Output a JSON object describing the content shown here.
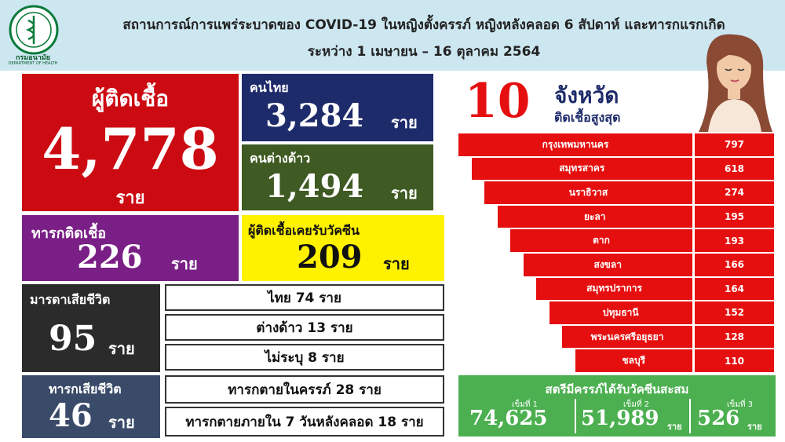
{
  "header": {
    "title_line1": "สถานการณ์การแพร่ระบาดของ COVID-19 ในหญิงตั้งครรภ์ หญิงหลังคลอด 6 สัปดาห์ และทารกแรกเกิด",
    "title_line2": "ระหว่าง 1 เมษายน – 16 ตุลาคม 2564",
    "logo_text": "กรมอนามัย",
    "logo_subtext": "DEPARTMENT OF HEALTH"
  },
  "infected": {
    "label": "ผู้ติดเชื้อ",
    "value": "4,778",
    "unit": "ราย"
  },
  "thai": {
    "label": "คนไทย",
    "value": "3,284",
    "unit": "ราย"
  },
  "foreign": {
    "label": "คนต่างด้าว",
    "value": "1,494",
    "unit": "ราย"
  },
  "infant_infected": {
    "label": "ทารกติดเชื้อ",
    "value": "226",
    "unit": "ราย"
  },
  "vaccinated_infected": {
    "label": "ผู้ติดเชื้อเคยรับวัคซีน",
    "value": "209",
    "unit": "ราย"
  },
  "maternal_death": {
    "label": "มารดาเสียชีวิต",
    "value": "95",
    "unit": "ราย",
    "breakdown": [
      "ไทย 74 ราย",
      "ต่างด้าว 13 ราย",
      "ไม่ระบุ 8 ราย"
    ]
  },
  "infant_death": {
    "label": "ทารกเสียชีวิต",
    "value": "46",
    "unit": "ราย",
    "breakdown": [
      "ทารกตายในครรภ์ 28 ราย",
      "ทารกตายภายใน 7 วันหลังคลอด 18 ราย"
    ]
  },
  "top_provinces": {
    "count": "10",
    "title": "จังหวัด",
    "subtitle": "ติดเชื้อสูงสุด",
    "items": [
      {
        "name": "กรุงเทพมหานคร",
        "value": 797
      },
      {
        "name": "สมุทรสาคร",
        "value": 618
      },
      {
        "name": "นราธิวาส",
        "value": 274
      },
      {
        "name": "ยะลา",
        "value": 195
      },
      {
        "name": "ตาก",
        "value": 193
      },
      {
        "name": "สงขลา",
        "value": 166
      },
      {
        "name": "สมุทรปราการ",
        "value": 164
      },
      {
        "name": "ปทุมธานี",
        "value": 152
      },
      {
        "name": "พระนครศรีอยุธยา",
        "value": 128
      },
      {
        "name": "ชลบุรี",
        "value": 110
      }
    ]
  },
  "vaccine": {
    "title": "สตรีมีครรภ์ได้รับวัคซีนสะสม",
    "doses": [
      {
        "label": "เข็มที่ 1",
        "value": "74,625",
        "unit": ""
      },
      {
        "label": "เข็มที่ 2",
        "value": "51,989",
        "unit": "ราย"
      },
      {
        "label": "เข็มที่ 3",
        "value": "526",
        "unit": "ราย"
      }
    ]
  },
  "colors": {
    "red": "#cc0a12",
    "navy": "#1e2b6b",
    "olive": "#3f5a22",
    "purple": "#7a1f86",
    "yellow": "#fff200",
    "dark": "#2b2b2b",
    "steel": "#3a4b69",
    "bar_red": "#e60f0f",
    "vaccine_green": "#4cb050"
  }
}
